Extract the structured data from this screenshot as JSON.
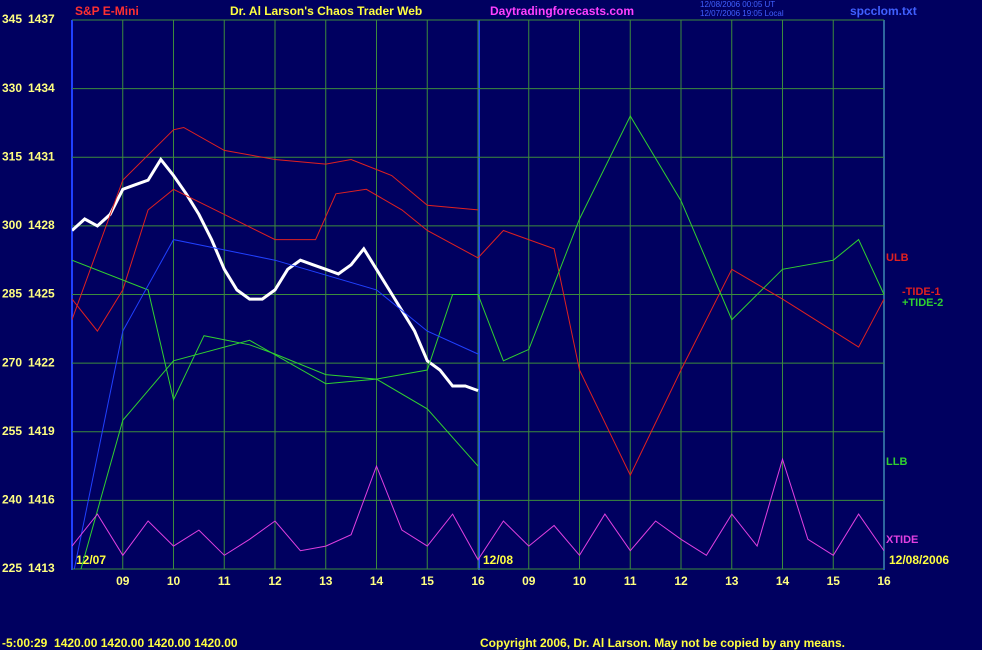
{
  "chart_data": {
    "type": "line",
    "header": {
      "symbol": "S&P E-Mini",
      "title": "Dr. Al Larson's Chaos Trader Web",
      "site": "Daytradingforecasts.com",
      "time_utc": "12/08/2006 00:05 UT",
      "time_local": "12/07/2006 19:05 Local",
      "file": "spcclom.txt"
    },
    "footer": {
      "status": "-5:00:29  1420.00 1420.00 1420.00 1420.00",
      "copyright": "Copyright 2006, Dr. Al Larson. May not be copied by any means."
    },
    "date_labels": [
      "12/07",
      "12/08",
      "12/08/2006"
    ],
    "xlim": [
      0,
      16
    ],
    "xticks": [
      {
        "value": 1,
        "label": "09"
      },
      {
        "value": 2,
        "label": "10"
      },
      {
        "value": 3,
        "label": "11"
      },
      {
        "value": 4,
        "label": "12"
      },
      {
        "value": 5,
        "label": "13"
      },
      {
        "value": 6,
        "label": "14"
      },
      {
        "value": 7,
        "label": "15"
      },
      {
        "value": 8,
        "label": "16"
      },
      {
        "value": 9,
        "label": "09"
      },
      {
        "value": 10,
        "label": "10"
      },
      {
        "value": 11,
        "label": "11"
      },
      {
        "value": 12,
        "label": "12"
      },
      {
        "value": 13,
        "label": "13"
      },
      {
        "value": 14,
        "label": "14"
      },
      {
        "value": 15,
        "label": "15"
      },
      {
        "value": 16,
        "label": "16"
      }
    ],
    "ylim": [
      1413,
      1437
    ],
    "yticks": [
      1413,
      1416,
      1419,
      1422,
      1425,
      1428,
      1431,
      1434,
      1437
    ],
    "y2lim": [
      225,
      345
    ],
    "y2ticks": [
      225,
      240,
      255,
      270,
      285,
      300,
      315,
      330,
      345
    ],
    "grid": true,
    "series": [
      {
        "color": "#ffffff",
        "x": [
          0,
          0.25,
          0.5,
          0.75,
          1,
          1.25,
          1.5,
          1.75,
          2,
          2.25,
          2.5,
          2.75,
          3,
          3.25,
          3.5,
          3.75,
          4,
          4.25,
          4.5,
          4.75,
          5,
          5.25,
          5.5,
          5.75,
          6,
          6.25,
          6.5,
          6.75,
          7,
          7.25,
          7.5,
          7.75,
          8
        ],
        "values": [
          1427.8,
          1428.3,
          1428.0,
          1428.5,
          1429.6,
          1429.8,
          1430.0,
          1430.9,
          1430.2,
          1429.4,
          1428.5,
          1427.4,
          1426.1,
          1425.2,
          1424.8,
          1424.8,
          1425.2,
          1426.1,
          1426.5,
          1426.3,
          1426.1,
          1425.9,
          1426.3,
          1427.0,
          1426.1,
          1425.2,
          1424.3,
          1423.4,
          1422.1,
          1421.7,
          1421.0,
          1421.0,
          1420.8
        ]
      },
      {
        "name": "ULB",
        "color": "#e02020",
        "x": [
          0,
          1,
          2,
          2.2,
          3,
          4,
          5,
          5.5,
          6.3,
          7,
          8
        ],
        "values": [
          1423.9,
          1430.0,
          1432.2,
          1432.3,
          1431.3,
          1430.9,
          1430.7,
          1430.9,
          1430.2,
          1428.9,
          1428.7
        ]
      },
      {
        "name": "-TIDE-1",
        "color": "#e02020",
        "x": [
          0,
          0.5,
          1,
          1.5,
          2,
          3,
          4,
          4.8,
          5.2,
          5.8,
          6.5,
          7,
          8,
          8.5,
          9.5,
          10,
          11,
          12,
          13,
          14,
          15,
          15.5,
          16
        ],
        "values": [
          1424.8,
          1423.4,
          1425.2,
          1428.7,
          1429.6,
          1428.5,
          1427.4,
          1427.4,
          1429.4,
          1429.6,
          1428.7,
          1427.8,
          1426.6,
          1427.8,
          1427.0,
          1421.7,
          1417.1,
          1421.7,
          1426.1,
          1424.8,
          1423.4,
          1422.7,
          1424.8
        ]
      },
      {
        "name": "+TIDE-2",
        "color": "#30d030",
        "x": [
          0,
          1.5,
          2,
          2.6,
          3.5,
          4,
          5,
          6,
          7,
          7.5,
          8,
          8.5,
          9,
          10,
          11,
          12,
          13,
          14,
          15,
          15.5,
          16
        ],
        "values": [
          1426.5,
          1425.2,
          1420.4,
          1423.2,
          1422.8,
          1422.4,
          1421.5,
          1421.3,
          1421.7,
          1425.0,
          1425.0,
          1422.1,
          1422.6,
          1428.3,
          1432.8,
          1429.1,
          1423.9,
          1426.1,
          1426.5,
          1427.4,
          1425.0
        ]
      },
      {
        "name": "LLB",
        "color": "#30d030",
        "x": [
          0,
          1,
          2,
          3.5,
          5,
          6,
          7,
          8
        ],
        "values": [
          1411.6,
          1419.5,
          1422.1,
          1423.0,
          1421.1,
          1421.3,
          1420.0,
          1417.5
        ]
      },
      {
        "color": "#2040ff",
        "x": [
          0,
          1,
          2,
          4,
          6,
          7,
          8
        ],
        "values": [
          1412.5,
          1423.4,
          1427.4,
          1426.5,
          1425.2,
          1423.4,
          1422.4
        ]
      },
      {
        "name": "XTIDE",
        "color": "#e040e0",
        "x": [
          0,
          0.5,
          1,
          1.5,
          2,
          2.5,
          3,
          3.5,
          4,
          4.5,
          5,
          5.5,
          6,
          6.5,
          7,
          7.5,
          8,
          8.5,
          9,
          9.5,
          10,
          10.5,
          11,
          11.5,
          12,
          12.5,
          13,
          13.5,
          14,
          14.5,
          15,
          15.5,
          16
        ],
        "values": [
          1414.0,
          1415.4,
          1413.6,
          1415.1,
          1414.0,
          1414.7,
          1413.6,
          1414.3,
          1415.1,
          1413.8,
          1414.0,
          1414.5,
          1417.5,
          1414.7,
          1414.0,
          1415.4,
          1413.4,
          1415.1,
          1414.0,
          1414.9,
          1413.6,
          1415.4,
          1413.8,
          1415.1,
          1414.3,
          1413.6,
          1415.4,
          1414.0,
          1417.8,
          1414.3,
          1413.6,
          1415.4,
          1413.8
        ]
      }
    ]
  }
}
